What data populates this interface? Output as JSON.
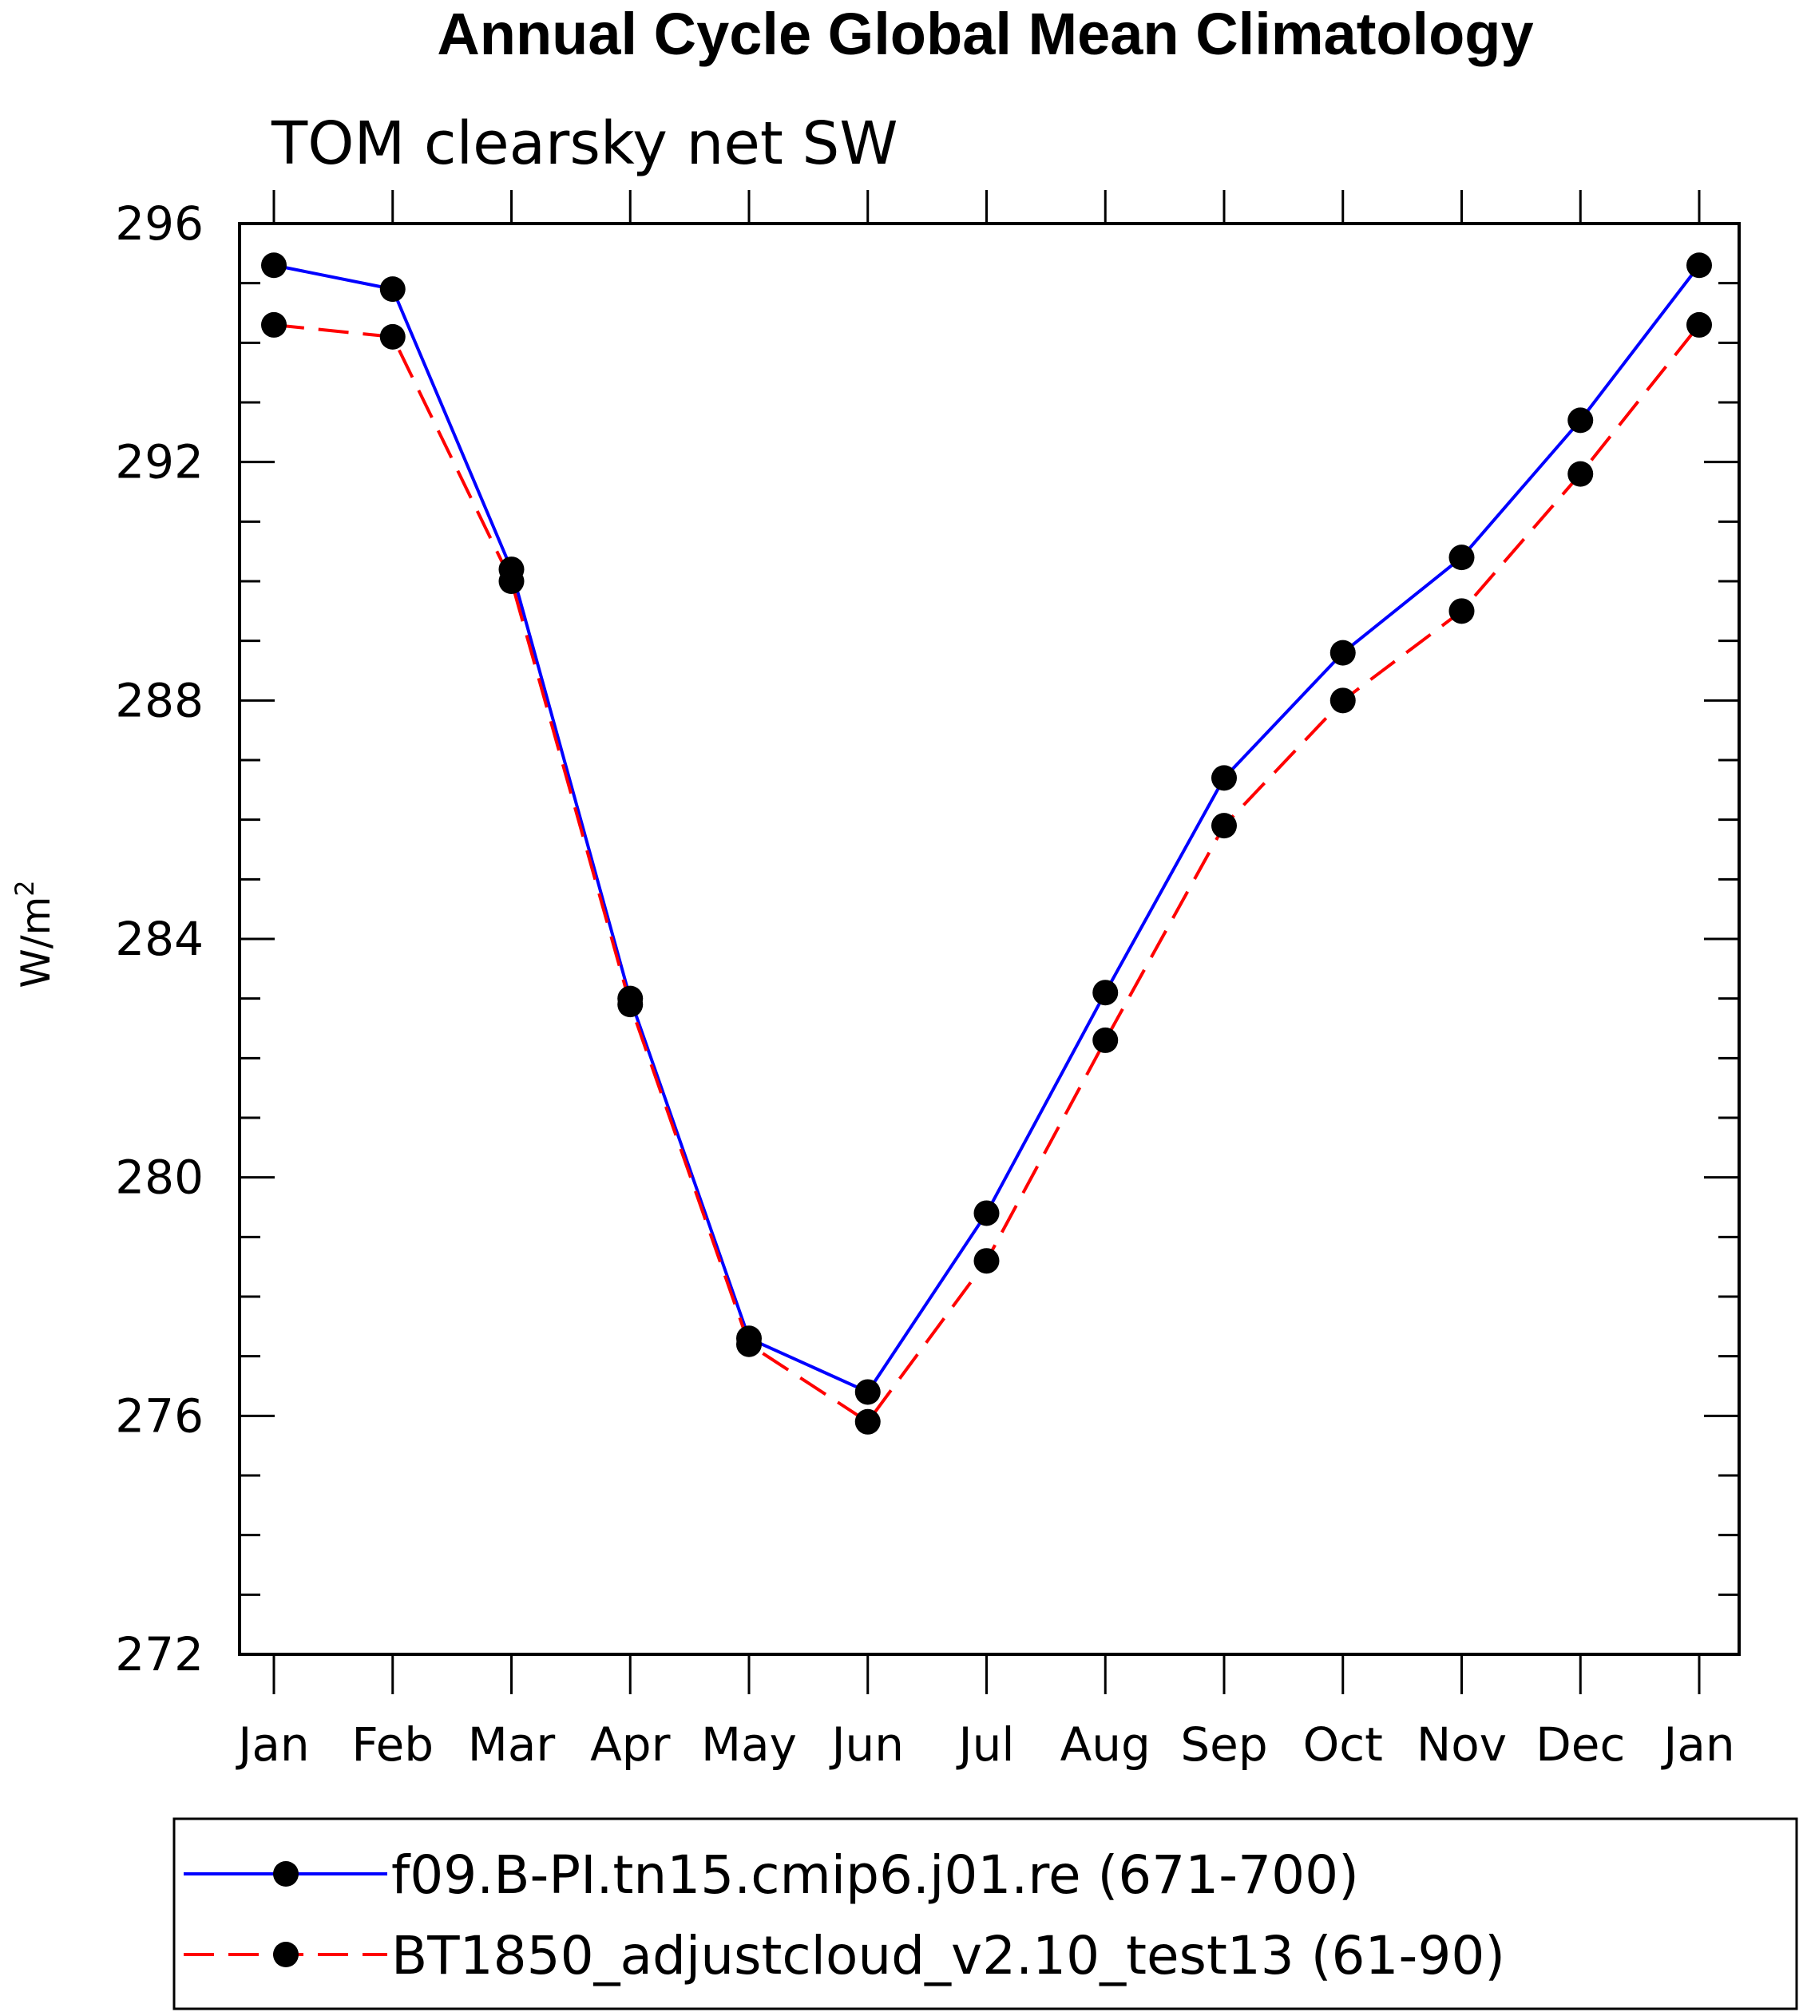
{
  "chart_data": {
    "type": "line",
    "title": "Annual Cycle Global Mean Climatology",
    "subtitle": "TOM clearsky net SW",
    "ylabel": "W/m",
    "ylabel_superscript": "2",
    "xlabel": "",
    "categories": [
      "Jan",
      "Feb",
      "Mar",
      "Apr",
      "May",
      "Jun",
      "Jul",
      "Aug",
      "Sep",
      "Oct",
      "Nov",
      "Dec",
      "Jan"
    ],
    "ylim": [
      272,
      296
    ],
    "yticks": [
      272,
      276,
      280,
      284,
      288,
      292,
      296
    ],
    "series": [
      {
        "name": "f09.B-PI.tn15.cmip6.j01.re (671-700)",
        "color": "#0000ff",
        "dash": "solid",
        "marker": "filled-circle",
        "values": [
          295.3,
          294.9,
          290.2,
          283.0,
          277.3,
          276.4,
          279.4,
          283.1,
          286.7,
          288.8,
          290.4,
          292.7,
          295.3
        ]
      },
      {
        "name": "BT1850_adjustcloud_v2.10_test13 (61-90)",
        "color": "#ff0000",
        "dash": "dashed",
        "marker": "filled-circle",
        "values": [
          294.3,
          294.1,
          290.0,
          282.9,
          277.2,
          275.9,
          278.6,
          282.3,
          285.9,
          288.0,
          289.5,
          291.8,
          294.3
        ]
      }
    ]
  }
}
